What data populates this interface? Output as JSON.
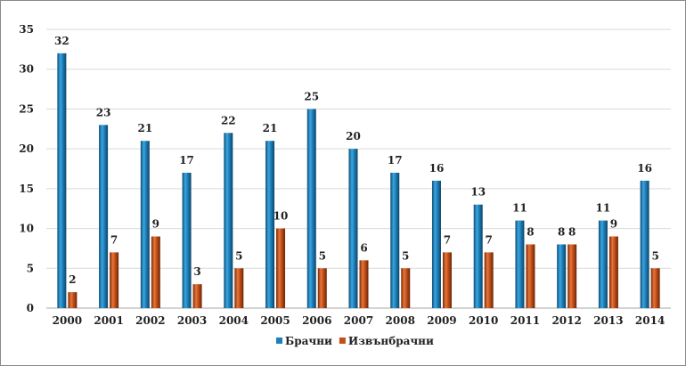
{
  "chart_data": {
    "type": "bar",
    "categories": [
      "2000",
      "2001",
      "2002",
      "2003",
      "2004",
      "2005",
      "2006",
      "2007",
      "2008",
      "2009",
      "2010",
      "2011",
      "2012",
      "2013",
      "2014"
    ],
    "series": [
      {
        "name": "Брачни",
        "color": "#1f7fb8",
        "values": [
          32,
          23,
          21,
          17,
          22,
          21,
          25,
          20,
          17,
          16,
          13,
          11,
          8,
          11,
          16
        ]
      },
      {
        "name": "Извънбрачни",
        "color": "#c0501a",
        "values": [
          2,
          7,
          9,
          3,
          5,
          10,
          5,
          6,
          5,
          7,
          7,
          8,
          8,
          9,
          5
        ]
      }
    ],
    "ylim": [
      0,
      35
    ],
    "yticks": [
      0,
      5,
      10,
      15,
      20,
      25,
      30,
      35
    ],
    "grid": true,
    "legend_position": "bottom",
    "title": "",
    "xlabel": "",
    "ylabel": ""
  }
}
